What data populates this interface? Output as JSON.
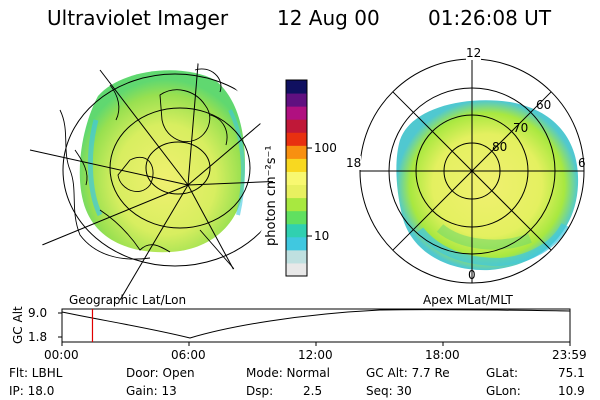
{
  "header": {
    "title": "Ultraviolet Imager",
    "date": "12 Aug 00",
    "time": "01:26:08 UT"
  },
  "left_map": {
    "caption": "Geographic Lat/Lon"
  },
  "right_map": {
    "caption": "Apex MLat/MLT",
    "mlt_labels": [
      "12",
      "18",
      "6",
      "0"
    ],
    "lat_labels": [
      "60",
      "70",
      "80"
    ]
  },
  "colorbar": {
    "unit_label": "photon cm⁻²s⁻¹",
    "ticks": [
      "100",
      "10"
    ],
    "scale": "log",
    "colors": [
      "#e8e8e8",
      "#bfe0e0",
      "#40c8e0",
      "#30d0b0",
      "#60e060",
      "#a8e840",
      "#e8f060",
      "#f8f870",
      "#f8d820",
      "#f89010",
      "#e83010",
      "#c01838",
      "#b01080",
      "#601080",
      "#101060"
    ]
  },
  "altitude_plot": {
    "ylabel": "GC Alt",
    "y_ticks": [
      "9.0",
      "1.8"
    ],
    "x_ticks": [
      "00:00",
      "06:00",
      "12:00",
      "18:00",
      "23:59"
    ],
    "marker_time_hours": 1.44,
    "marker_color": "#e00000"
  },
  "info": {
    "flt": "Flt: LBHL",
    "ip": "IP: 18.0",
    "door": "Door: Open",
    "gain": "Gain: 13",
    "mode": "Mode: Normal",
    "dsp_label": "Dsp:",
    "dsp_value": "2.5",
    "gc_alt": "GC Alt: 7.7 Re",
    "seq": "Seq: 30",
    "glat_label": "GLat:",
    "glat_value": "75.1",
    "glon_label": "GLon:",
    "glon_value": "10.9"
  }
}
